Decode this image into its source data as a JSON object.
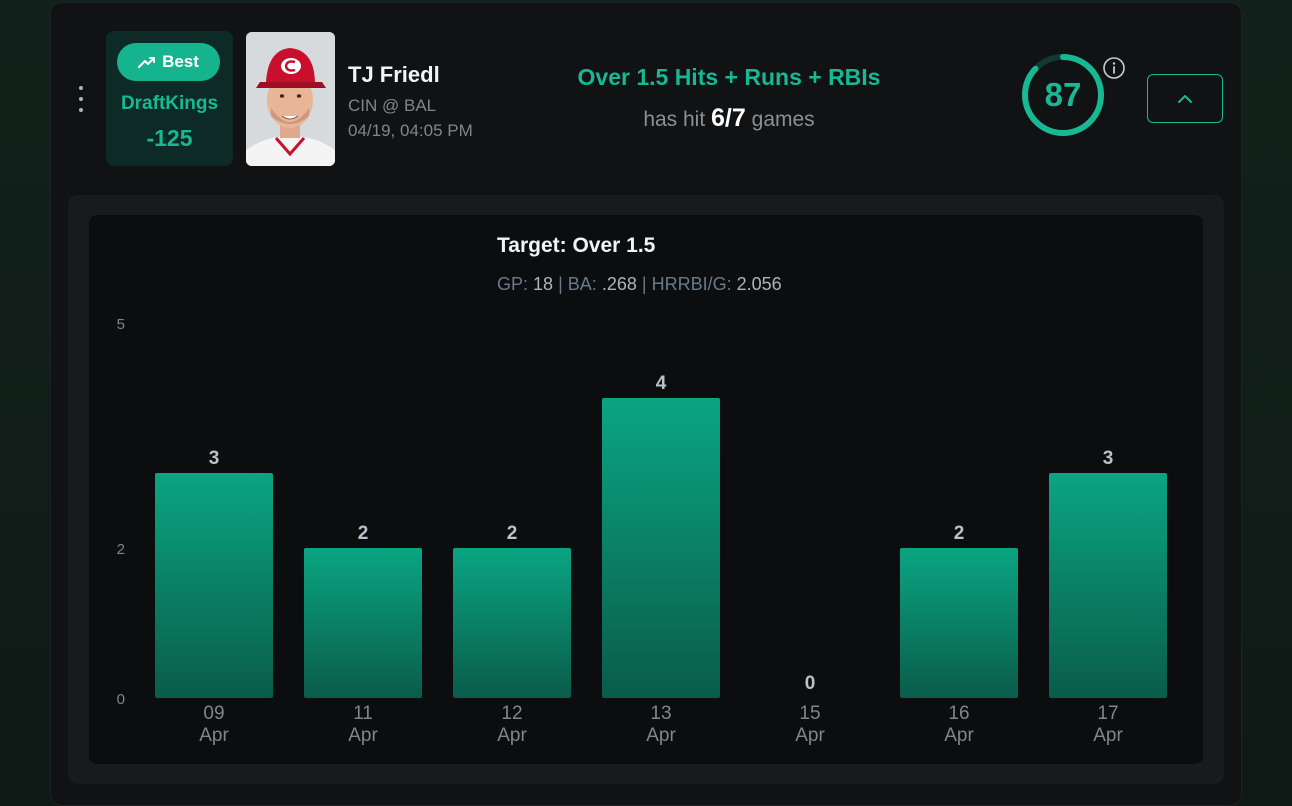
{
  "book": {
    "badge_label": "Best",
    "badge_icon": "trending-up-icon",
    "name": "DraftKings",
    "odds": "-125"
  },
  "player": {
    "name": "TJ Friedl",
    "matchup": "CIN @ BAL",
    "datetime": "04/19, 04:05 PM"
  },
  "prop": {
    "title": "Over 1.5 Hits + Runs + RBIs",
    "hit_prefix": "has hit",
    "hit_value": "6/7",
    "hit_suffix": "games"
  },
  "score": {
    "value": "87",
    "fraction": 0.87
  },
  "chart_header": {
    "title": "Target: Over 1.5",
    "gp_label": "GP:",
    "gp_value": "18",
    "sep1": "|",
    "ba_label": "BA:",
    "ba_value": ".268",
    "sep2": "|",
    "hrrbi_label": "HRRBI/G:",
    "hrrbi_value": "2.056"
  },
  "colors": {
    "accent": "#17b893",
    "bar_top": "#0aa582",
    "bar_bottom": "#0a5c4a"
  },
  "chart_data": {
    "type": "bar",
    "categories": [
      [
        "09",
        "Apr"
      ],
      [
        "11",
        "Apr"
      ],
      [
        "12",
        "Apr"
      ],
      [
        "13",
        "Apr"
      ],
      [
        "15",
        "Apr"
      ],
      [
        "16",
        "Apr"
      ],
      [
        "17",
        "Apr"
      ]
    ],
    "values": [
      3,
      2,
      2,
      4,
      0,
      2,
      3
    ],
    "ylim": [
      0,
      5
    ],
    "yticks": [
      0,
      2,
      5
    ],
    "title": "Target: Over 1.5",
    "xlabel": "",
    "ylabel": "",
    "grid": false
  }
}
